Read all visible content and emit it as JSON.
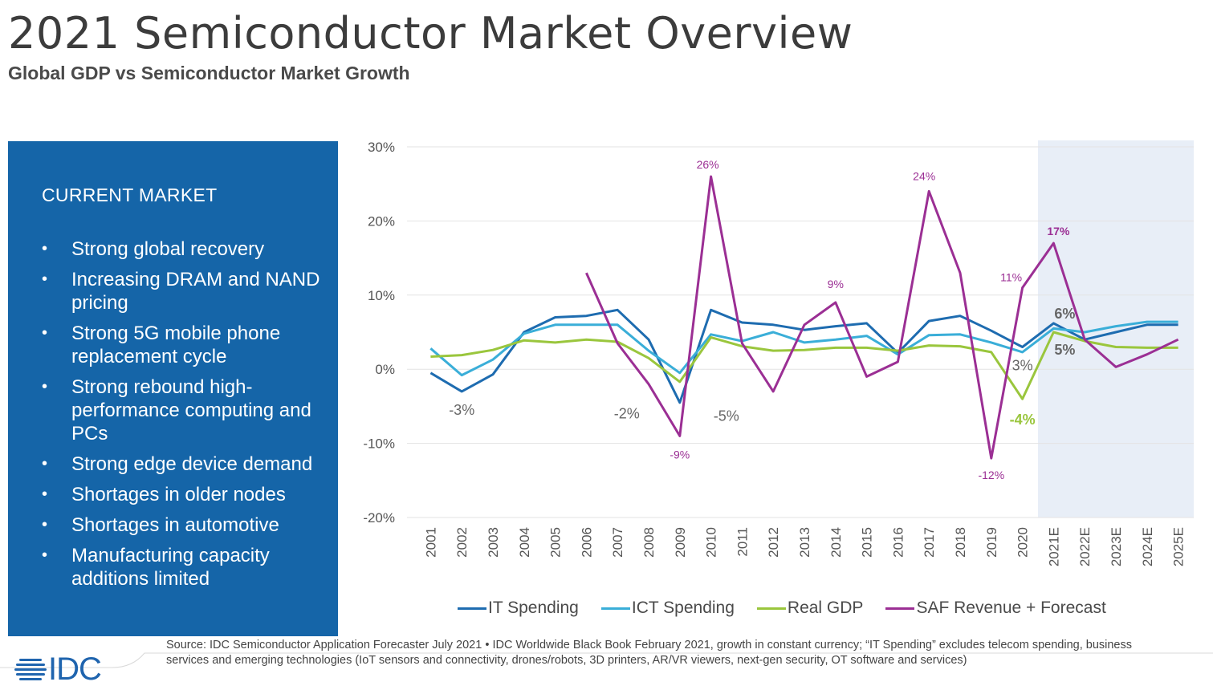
{
  "title": "2021 Semiconductor Market Overview",
  "subtitle": "Global GDP vs Semiconductor Market Growth",
  "panel": {
    "heading": "CURRENT MARKET",
    "bullets": [
      "Strong global recovery",
      "Increasing DRAM and NAND pricing",
      "Strong 5G mobile phone replacement cycle",
      "Strong rebound high-performance computing and PCs",
      "Strong edge device demand",
      "Shortages in older nodes",
      "Shortages in automotive",
      "Manufacturing capacity additions limited"
    ],
    "color": "#1565a8"
  },
  "chart_data": {
    "type": "line",
    "categories": [
      "2001",
      "2002",
      "2003",
      "2004",
      "2005",
      "2006",
      "2007",
      "2008",
      "2009",
      "2010",
      "2011",
      "2012",
      "2013",
      "2014",
      "2015",
      "2016",
      "2017",
      "2018",
      "2019",
      "2020",
      "2021E",
      "2022E",
      "2023E",
      "2024E",
      "2025E"
    ],
    "ylim": [
      -20,
      30
    ],
    "yticks": [
      30,
      20,
      10,
      0,
      -10,
      -20
    ],
    "ytick_labels": [
      "30%",
      "20%",
      "10%",
      "0%",
      "-10%",
      "-20%"
    ],
    "grid": true,
    "forecast_shading": [
      "2021E",
      "2025E"
    ],
    "legend_position": "bottom",
    "series": [
      {
        "name": "IT Spending",
        "color": "#1e6cb0",
        "values": [
          -0.5,
          -3,
          -0.7,
          5,
          7,
          7.2,
          8,
          4,
          -4.5,
          8,
          6.3,
          6,
          5.3,
          5.8,
          6.2,
          2.2,
          6.5,
          7.2,
          5.2,
          3,
          6.2,
          4,
          5,
          6,
          6
        ]
      },
      {
        "name": "ICT Spending",
        "color": "#3aaed8",
        "values": [
          2.8,
          -0.8,
          1.3,
          4.8,
          6,
          6,
          6,
          2.5,
          -0.5,
          4.7,
          3.8,
          5,
          3.6,
          4,
          4.5,
          2,
          4.6,
          4.7,
          3.6,
          2.3,
          5.5,
          5,
          5.8,
          6.4,
          6.4
        ]
      },
      {
        "name": "Real GDP",
        "color": "#9ac63d",
        "values": [
          1.7,
          1.9,
          2.6,
          3.9,
          3.6,
          4,
          3.7,
          1.5,
          -1.7,
          4.3,
          3.1,
          2.5,
          2.6,
          2.9,
          2.9,
          2.5,
          3.2,
          3.1,
          2.3,
          -4,
          5,
          3.8,
          3,
          2.9,
          2.9
        ]
      },
      {
        "name": "SAF Revenue + Forecast",
        "color": "#9b2f94",
        "values": [
          null,
          null,
          null,
          null,
          null,
          13,
          3.5,
          -2,
          -9,
          26,
          3.5,
          -3,
          6,
          9,
          -1,
          1,
          24,
          13,
          -12,
          11,
          17,
          4,
          0.3,
          2,
          4
        ]
      }
    ],
    "annotations": [
      {
        "text": "26%",
        "series": "SAF Revenue + Forecast",
        "x": "2010",
        "y": 26
      },
      {
        "text": "24%",
        "series": "SAF Revenue + Forecast",
        "x": "2017",
        "y": 24
      },
      {
        "text": "17%",
        "series": "SAF Revenue + Forecast",
        "x": "2021E",
        "y": 17
      },
      {
        "text": "11%",
        "series": "SAF Revenue + Forecast",
        "x": "2020",
        "y": 11
      },
      {
        "text": "9%",
        "series": "SAF Revenue + Forecast",
        "x": "2014",
        "y": 9
      },
      {
        "text": "-9%",
        "series": "SAF Revenue + Forecast",
        "x": "2009",
        "y": -9
      },
      {
        "text": "-12%",
        "series": "SAF Revenue + Forecast",
        "x": "2019",
        "y": -12
      },
      {
        "text": "-3%",
        "series": "IT Spending",
        "x": "2002",
        "y": -3
      },
      {
        "text": "-2%",
        "series": "Real GDP",
        "x": "2009",
        "y": -2
      },
      {
        "text": "-5%",
        "series": "IT Spending",
        "x": "2009",
        "y": -5
      },
      {
        "text": "3%",
        "series": "IT Spending",
        "x": "2020",
        "y": 3
      },
      {
        "text": "-4%",
        "series": "Real GDP",
        "x": "2020",
        "y": -4
      },
      {
        "text": "6%",
        "series": "IT Spending",
        "x": "2021E",
        "y": 6
      },
      {
        "text": "5%",
        "series": "Real GDP",
        "x": "2021E",
        "y": 5
      }
    ]
  },
  "source": "Source: IDC Semiconductor Application Forecaster July 2021 • IDC Worldwide Black Book February 2021, growth in constant currency; “IT Spending” excludes telecom spending, business services and emerging technologies (IoT sensors and connectivity, drones/robots, 3D printers, AR/VR viewers, next-gen security, OT software and services)",
  "logo": {
    "text": "IDC",
    "color": "#1f64ae"
  }
}
